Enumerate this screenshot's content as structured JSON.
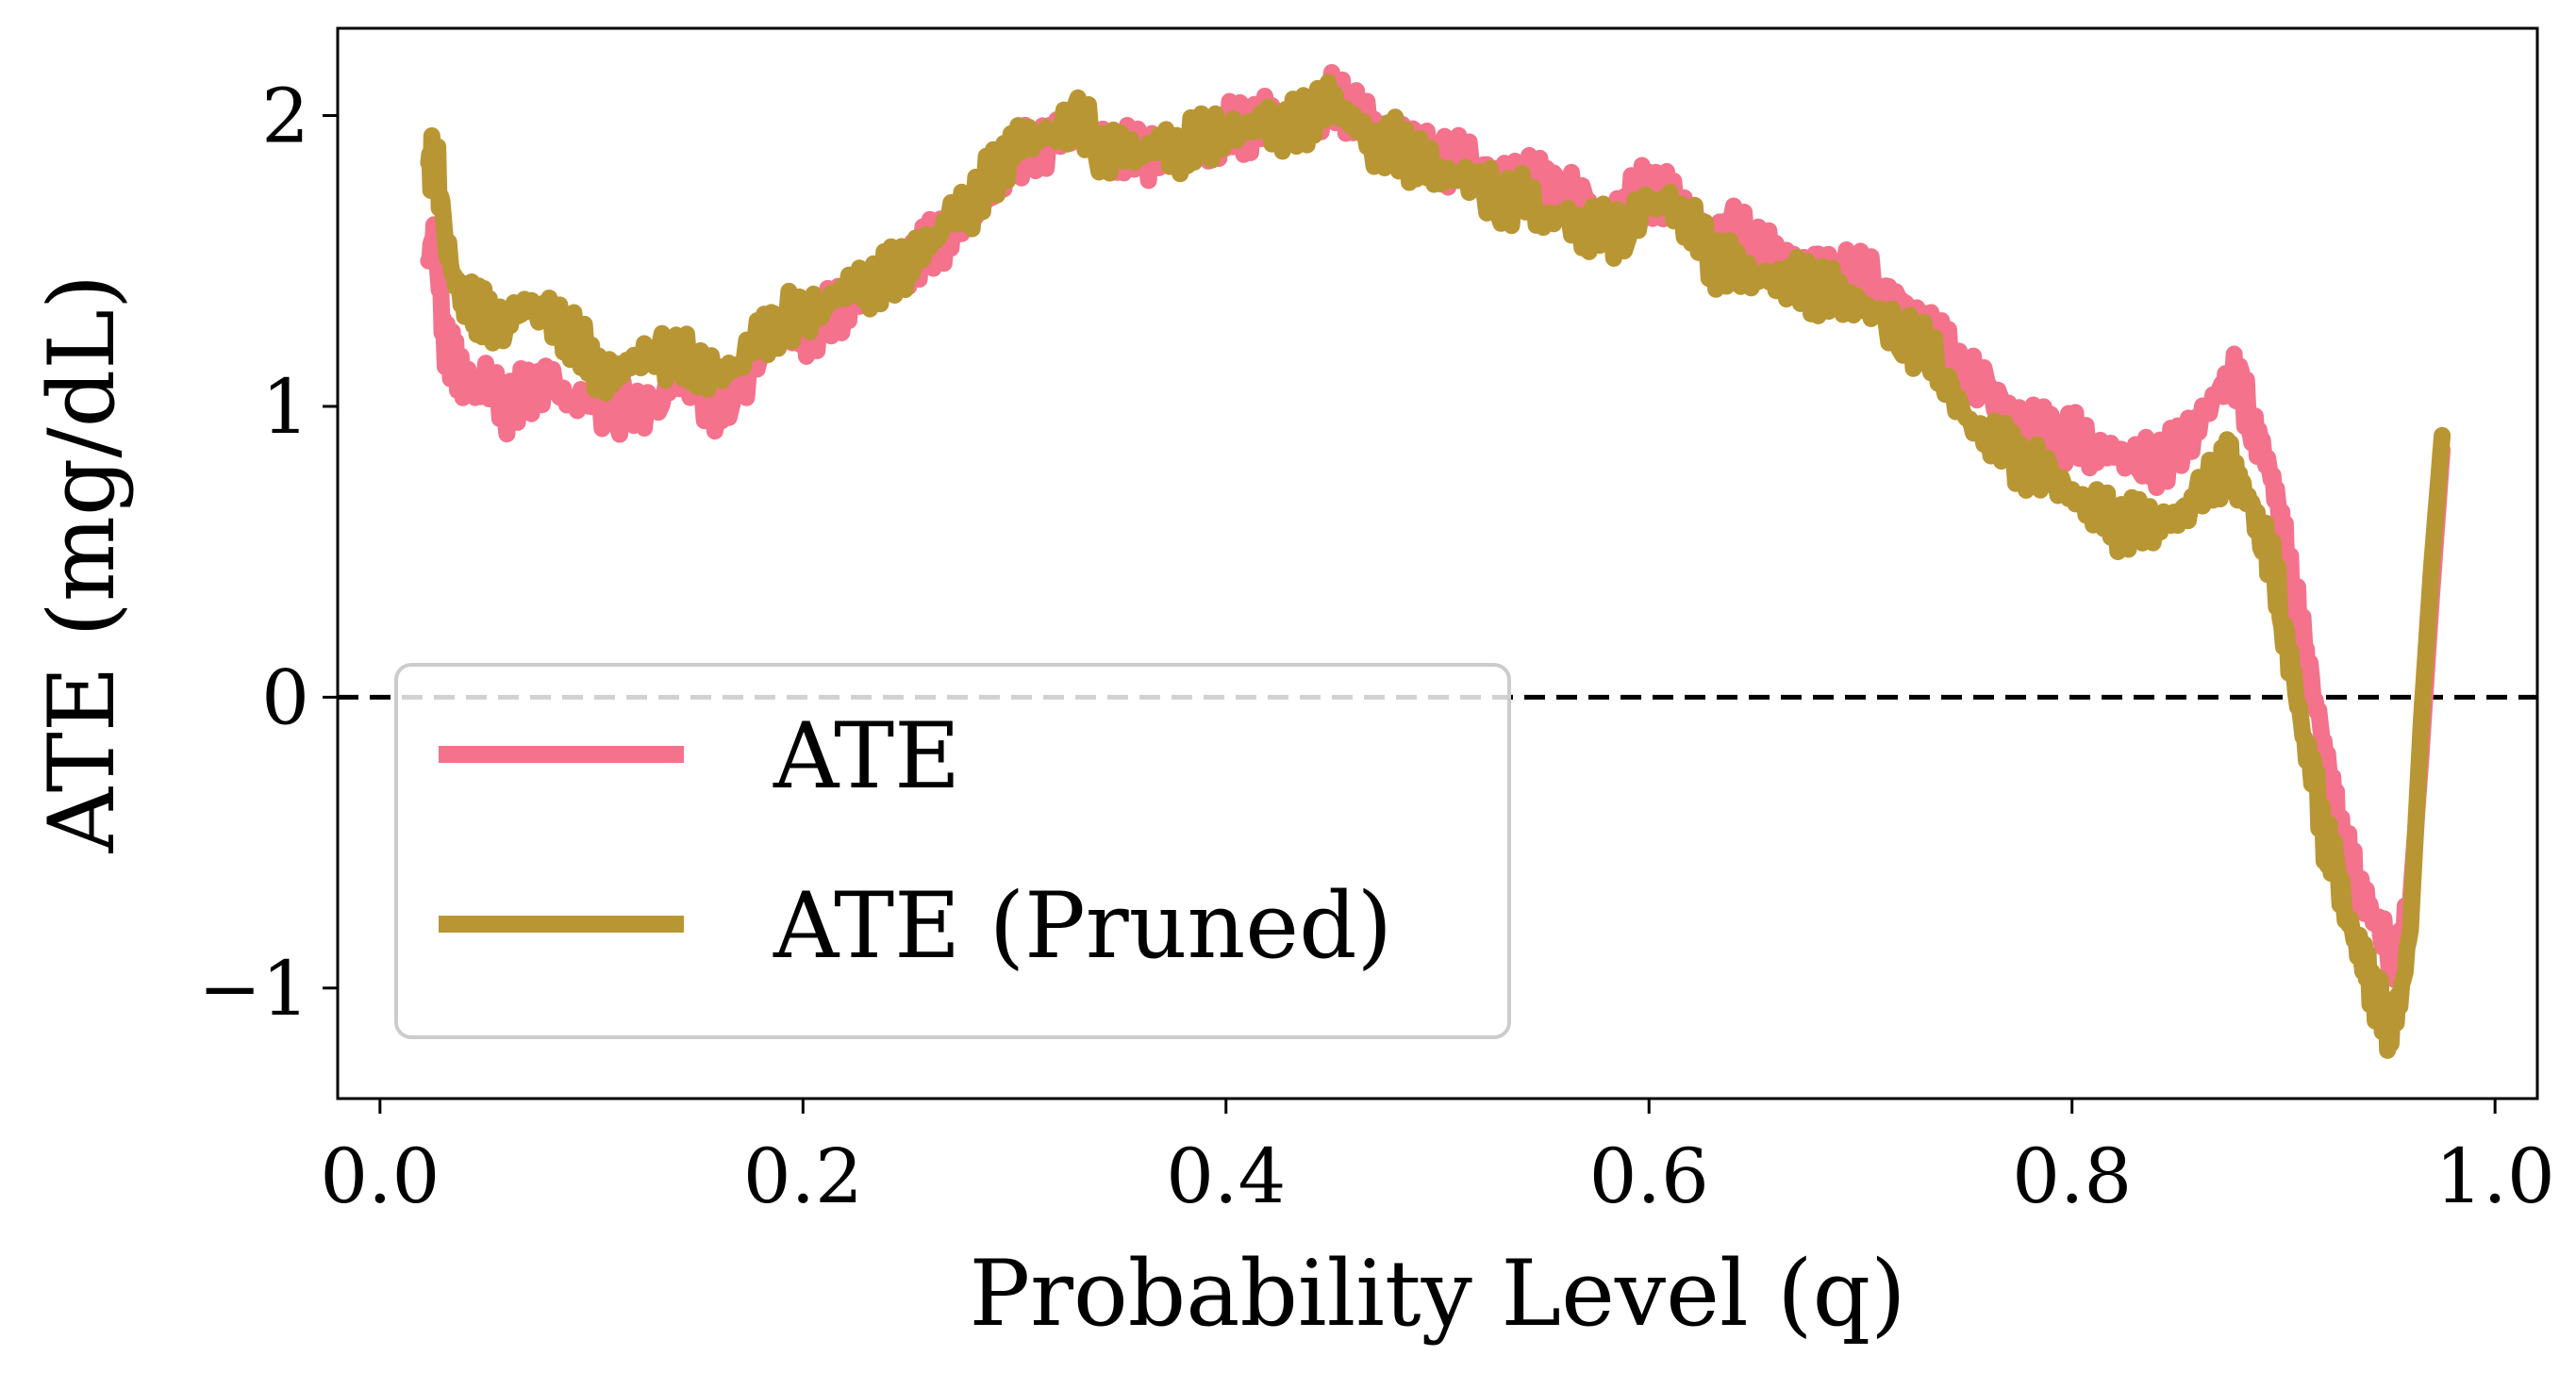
{
  "chart_data": {
    "type": "line",
    "xlabel": "Probability Level (q)",
    "ylabel": "ATE (mg/dL)",
    "xlim": [
      -0.02,
      1.02
    ],
    "ylim": [
      -1.38,
      2.3
    ],
    "xticks": [
      0.0,
      0.2,
      0.4,
      0.6,
      0.8,
      1.0
    ],
    "xtick_labels": [
      "0.0",
      "0.2",
      "0.4",
      "0.6",
      "0.8",
      "1.0"
    ],
    "yticks": [
      -1,
      0,
      1,
      2
    ],
    "ytick_labels": [
      "−1",
      "0",
      "1",
      "2"
    ],
    "grid": false,
    "legend_position": "lower-left",
    "reference_line": {
      "y": 0,
      "style": "dashed",
      "color": "#000000"
    },
    "series": [
      {
        "name": "ATE",
        "color": "#f4728c",
        "x": [
          0.023,
          0.026,
          0.03,
          0.035,
          0.04,
          0.045,
          0.05,
          0.06,
          0.07,
          0.08,
          0.09,
          0.1,
          0.11,
          0.12,
          0.13,
          0.14,
          0.15,
          0.16,
          0.17,
          0.18,
          0.19,
          0.2,
          0.21,
          0.22,
          0.23,
          0.24,
          0.25,
          0.26,
          0.27,
          0.28,
          0.29,
          0.3,
          0.31,
          0.32,
          0.33,
          0.34,
          0.35,
          0.36,
          0.37,
          0.38,
          0.39,
          0.4,
          0.41,
          0.42,
          0.43,
          0.44,
          0.45,
          0.46,
          0.47,
          0.48,
          0.49,
          0.5,
          0.51,
          0.52,
          0.53,
          0.54,
          0.55,
          0.56,
          0.57,
          0.58,
          0.59,
          0.6,
          0.61,
          0.62,
          0.63,
          0.64,
          0.65,
          0.66,
          0.67,
          0.68,
          0.69,
          0.7,
          0.71,
          0.72,
          0.73,
          0.74,
          0.75,
          0.76,
          0.77,
          0.78,
          0.79,
          0.8,
          0.81,
          0.82,
          0.83,
          0.84,
          0.85,
          0.86,
          0.87,
          0.875,
          0.88,
          0.885,
          0.89,
          0.895,
          0.9,
          0.905,
          0.91,
          0.915,
          0.92,
          0.925,
          0.93,
          0.935,
          0.94,
          0.945,
          0.95,
          0.955,
          0.96,
          0.965,
          0.97,
          0.975
        ],
        "y": [
          1.5,
          1.62,
          1.25,
          1.15,
          1.1,
          1.05,
          1.08,
          1.0,
          1.05,
          1.1,
          1.0,
          1.05,
          0.95,
          1.02,
          0.98,
          1.1,
          1.05,
          1.0,
          1.05,
          1.2,
          1.25,
          1.25,
          1.3,
          1.35,
          1.4,
          1.45,
          1.5,
          1.55,
          1.6,
          1.65,
          1.75,
          1.85,
          1.9,
          1.92,
          1.95,
          1.9,
          1.88,
          1.85,
          1.9,
          1.85,
          1.9,
          1.95,
          1.95,
          2.0,
          1.95,
          2.0,
          2.05,
          2.02,
          1.95,
          1.95,
          1.9,
          1.85,
          1.85,
          1.82,
          1.8,
          1.8,
          1.75,
          1.75,
          1.7,
          1.65,
          1.7,
          1.75,
          1.72,
          1.65,
          1.6,
          1.6,
          1.55,
          1.5,
          1.5,
          1.5,
          1.45,
          1.45,
          1.4,
          1.35,
          1.3,
          1.2,
          1.1,
          1.05,
          1.0,
          0.95,
          0.9,
          0.9,
          0.85,
          0.85,
          0.8,
          0.82,
          0.85,
          0.95,
          1.05,
          1.12,
          1.05,
          0.95,
          0.85,
          0.75,
          0.55,
          0.35,
          0.15,
          0.0,
          -0.2,
          -0.4,
          -0.55,
          -0.65,
          -0.72,
          -0.8,
          -0.85,
          -0.9,
          -0.7,
          -0.2,
          0.35,
          0.85
        ]
      },
      {
        "name": "ATE (Pruned)",
        "color": "#b99634",
        "x": [
          0.023,
          0.026,
          0.03,
          0.035,
          0.04,
          0.045,
          0.05,
          0.06,
          0.07,
          0.08,
          0.09,
          0.1,
          0.11,
          0.12,
          0.13,
          0.14,
          0.15,
          0.16,
          0.17,
          0.18,
          0.19,
          0.2,
          0.21,
          0.22,
          0.23,
          0.24,
          0.25,
          0.26,
          0.27,
          0.28,
          0.29,
          0.3,
          0.31,
          0.32,
          0.33,
          0.34,
          0.35,
          0.36,
          0.37,
          0.38,
          0.39,
          0.4,
          0.41,
          0.42,
          0.43,
          0.44,
          0.45,
          0.46,
          0.47,
          0.48,
          0.49,
          0.5,
          0.51,
          0.52,
          0.53,
          0.54,
          0.55,
          0.56,
          0.57,
          0.58,
          0.59,
          0.6,
          0.61,
          0.62,
          0.63,
          0.64,
          0.65,
          0.66,
          0.67,
          0.68,
          0.69,
          0.7,
          0.71,
          0.72,
          0.73,
          0.74,
          0.75,
          0.76,
          0.77,
          0.78,
          0.79,
          0.8,
          0.81,
          0.82,
          0.83,
          0.84,
          0.85,
          0.86,
          0.87,
          0.875,
          0.88,
          0.885,
          0.89,
          0.895,
          0.9,
          0.905,
          0.91,
          0.915,
          0.92,
          0.925,
          0.93,
          0.935,
          0.94,
          0.945,
          0.95,
          0.955,
          0.96,
          0.965,
          0.97,
          0.975
        ],
        "y": [
          1.8,
          1.92,
          1.6,
          1.45,
          1.35,
          1.35,
          1.3,
          1.3,
          1.35,
          1.3,
          1.25,
          1.15,
          1.1,
          1.15,
          1.2,
          1.15,
          1.15,
          1.1,
          1.15,
          1.25,
          1.3,
          1.3,
          1.35,
          1.4,
          1.42,
          1.45,
          1.5,
          1.55,
          1.65,
          1.7,
          1.8,
          1.9,
          1.92,
          1.95,
          1.98,
          1.9,
          1.88,
          1.87,
          1.9,
          1.88,
          1.92,
          1.95,
          1.95,
          1.98,
          1.95,
          2.0,
          2.05,
          1.98,
          1.9,
          1.9,
          1.85,
          1.8,
          1.8,
          1.75,
          1.72,
          1.72,
          1.65,
          1.65,
          1.6,
          1.6,
          1.62,
          1.7,
          1.7,
          1.62,
          1.5,
          1.48,
          1.45,
          1.45,
          1.42,
          1.4,
          1.38,
          1.35,
          1.3,
          1.25,
          1.2,
          1.1,
          0.95,
          0.9,
          0.85,
          0.8,
          0.75,
          0.7,
          0.65,
          0.6,
          0.6,
          0.6,
          0.62,
          0.68,
          0.78,
          0.8,
          0.72,
          0.65,
          0.55,
          0.45,
          0.25,
          0.05,
          -0.15,
          -0.3,
          -0.5,
          -0.6,
          -0.75,
          -0.85,
          -0.95,
          -1.05,
          -1.15,
          -1.05,
          -0.8,
          -0.1,
          0.45,
          0.9
        ]
      }
    ]
  }
}
